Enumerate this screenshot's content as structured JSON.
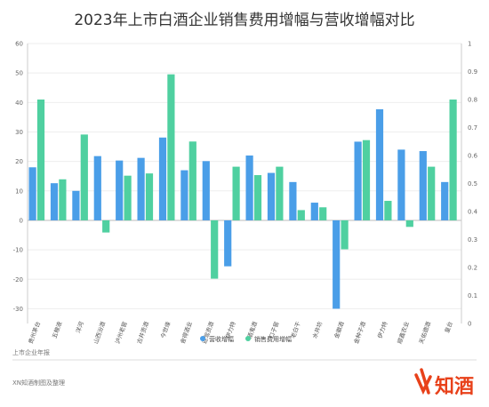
{
  "chart_data": {
    "type": "bar",
    "title": "2023年上市白酒企业销售费用增幅与营收增幅对比",
    "categories": [
      "贵州茅台",
      "五粮液",
      "洋河",
      "山西汾酒",
      "泸州老窖",
      "古井贡酒",
      "今世缘",
      "舍得酒业",
      "迎驾贡酒",
      "伊力特",
      "酒鬼酒",
      "口子窖",
      "老白干",
      "水井坊",
      "金徽酒",
      "金种子酒",
      "伊力特",
      "顺鑫农业",
      "天佑德酒",
      "皇台"
    ],
    "series": [
      {
        "name": "营收增幅",
        "axis": "left",
        "color": "#4a9ee8",
        "values": [
          18.0,
          12.6,
          10.0,
          21.8,
          20.3,
          21.2,
          28.1,
          17.0,
          20.1,
          -15.6,
          22.0,
          16.1,
          13.0,
          6.0,
          -30.0,
          26.7,
          37.7,
          24.0,
          23.5,
          13.0
        ]
      },
      {
        "name": "销售费用增幅",
        "axis": "right",
        "color": "#4fd0a0",
        "values": [
          0.8,
          0.515,
          0.675,
          0.325,
          0.528,
          0.536,
          0.89,
          0.65,
          0.16,
          0.56,
          0.53,
          0.56,
          0.405,
          0.415,
          0.265,
          0.655,
          0.438,
          0.345,
          0.56,
          0.8
        ]
      }
    ],
    "ylim_left": [
      -35,
      60
    ],
    "yticks_left": [
      -30,
      -20,
      -10,
      0,
      10,
      20,
      30,
      40,
      50,
      60
    ],
    "ylim_right": [
      0,
      1
    ],
    "yticks_right": [
      0,
      0.1,
      0.2,
      0.3,
      0.4,
      0.5,
      0.6,
      0.7,
      0.8,
      0.9,
      1
    ],
    "grid": true,
    "legend_position": "bottom"
  },
  "labels": {
    "tick_left": [
      "-30",
      "-20",
      "-10",
      "0",
      "10",
      "20",
      "30",
      "40",
      "50",
      "60"
    ],
    "tick_right": [
      "0",
      "0.1",
      "0.2",
      "0.3",
      "0.4",
      "0.5",
      "0.6",
      "0.7",
      "0.8",
      "0.9",
      "1"
    ]
  },
  "footer": {
    "source": "上市企业年报",
    "credit": "XN知酒制图及整理",
    "brand": "知酒"
  },
  "colors": {
    "bar_revenue": "#4a9ee8",
    "bar_sales_expense": "#4fd0a0",
    "brand": "#e8411a"
  }
}
